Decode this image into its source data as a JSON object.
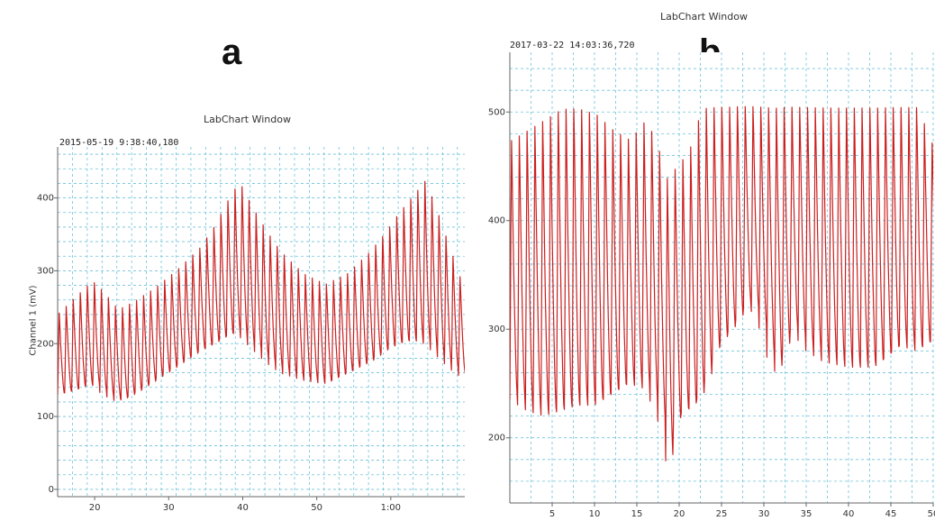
{
  "panels": {
    "a": {
      "letter": "a",
      "window_title": "LabChart Window",
      "timestamp": "2015-05-19 9:38:40,180",
      "ylabel": "Channel 1 (mV)"
    },
    "b": {
      "letter": "b",
      "window_title": "LabChart Window",
      "timestamp": "2017-03-22 14:03:36,720"
    }
  },
  "colors": {
    "trace": "#cc1f1f",
    "grid": "#6ec3db",
    "axis": "#666666",
    "frame_bg": "#ffffff"
  },
  "chart_data": [
    {
      "type": "line",
      "panel": "a",
      "xlabel": "",
      "ylabel": "Channel 1 (mV)",
      "xlim": [
        15,
        70
      ],
      "ylim": [
        -10,
        470
      ],
      "xticks": [
        20,
        30,
        40,
        50,
        60
      ],
      "xtick_labels": [
        "20",
        "30",
        "40",
        "50",
        "1:00"
      ],
      "yticks": [
        0,
        100,
        200,
        300,
        400
      ],
      "ytick_labels": [
        "0",
        "100",
        "200",
        "300",
        "400"
      ],
      "grid": true,
      "cycle_period": 0.95,
      "series": [
        {
          "color": "#cc1f1f",
          "envelope_x": [
            15,
            17,
            19.5,
            21,
            23,
            25,
            28,
            31,
            34,
            36,
            38.5,
            39.5,
            41,
            43,
            45,
            48,
            51,
            54,
            57,
            59,
            61,
            63,
            64.5,
            66,
            68,
            70
          ],
          "peaks": [
            245,
            265,
            290,
            275,
            250,
            260,
            280,
            305,
            335,
            365,
            415,
            425,
            395,
            360,
            330,
            300,
            285,
            300,
            330,
            355,
            385,
            410,
            430,
            390,
            330,
            270
          ],
          "troughs": [
            130,
            135,
            145,
            130,
            120,
            130,
            150,
            170,
            190,
            200,
            215,
            210,
            195,
            175,
            160,
            150,
            145,
            160,
            175,
            190,
            200,
            205,
            200,
            185,
            165,
            150
          ]
        }
      ]
    },
    {
      "type": "line",
      "panel": "b",
      "xlabel": "",
      "ylabel": "",
      "xlim": [
        0,
        50
      ],
      "ylim": [
        140,
        555
      ],
      "xticks": [
        5,
        10,
        15,
        20,
        25,
        30,
        35,
        40,
        45,
        50
      ],
      "xtick_labels": [
        "5",
        "10",
        "15",
        "20",
        "25",
        "30",
        "35",
        "40",
        "45",
        "50"
      ],
      "yticks": [
        200,
        300,
        400,
        500
      ],
      "ytick_labels": [
        "200",
        "300",
        "400",
        "500"
      ],
      "grid": true,
      "cycle_period": 0.92,
      "saturation": 510,
      "series": [
        {
          "color": "#cc1f1f",
          "envelope_x": [
            0,
            2,
            4,
            6,
            8,
            10,
            12,
            14,
            16,
            17.5,
            18.3,
            19.5,
            21,
            22.5,
            24,
            26,
            28,
            29.5,
            31,
            33,
            35,
            37,
            40,
            43,
            46,
            48,
            50
          ],
          "peaks": [
            480,
            490,
            500,
            510,
            510,
            505,
            490,
            480,
            500,
            470,
            445,
            455,
            470,
            510,
            510,
            510,
            510,
            510,
            510,
            510,
            510,
            510,
            510,
            510,
            510,
            510,
            470
          ],
          "troughs": [
            235,
            225,
            220,
            225,
            230,
            230,
            240,
            250,
            245,
            215,
            175,
            220,
            225,
            240,
            280,
            300,
            325,
            300,
            255,
            300,
            280,
            270,
            265,
            265,
            285,
            280,
            290
          ]
        }
      ]
    }
  ]
}
